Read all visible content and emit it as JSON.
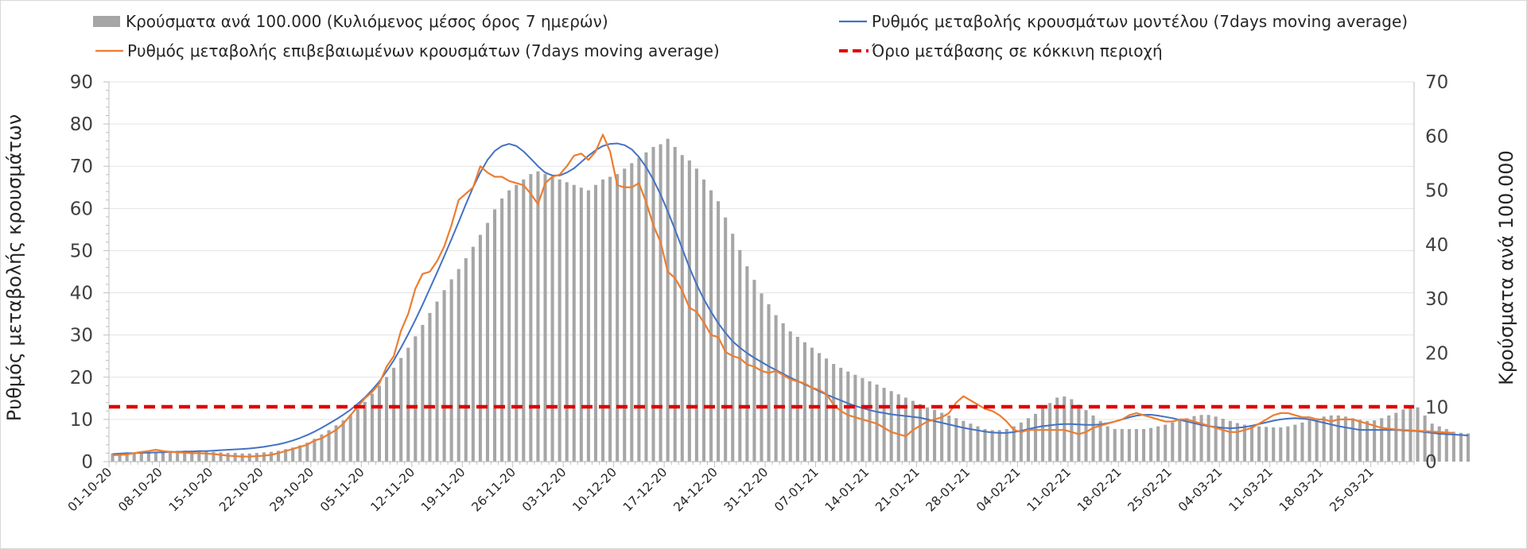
{
  "colors": {
    "bars": "#a6a6a6",
    "model": "#4472c4",
    "confirmed": "#ed7d31",
    "threshold": "#e00000",
    "grid": "#e3e3e3",
    "axis": "#bfbfbf",
    "frame": "#d9d9d9"
  },
  "chart_data": {
    "type": "bar",
    "legend": {
      "placement": "top",
      "items": [
        {
          "key": "bars",
          "label": "Κρούσματα ανά 100.000 (Κυλιόμενος μέσος όρος 7 ημερών)",
          "marker": "bar"
        },
        {
          "key": "model",
          "label": "Ρυθμός μεταβολής κρουσμάτων μοντέλου (7days moving average)",
          "marker": "line"
        },
        {
          "key": "confirmed",
          "label": "Ρυθμός μεταβολής επιβεβαιωμένων κρουσμάτων (7days moving average)",
          "marker": "line"
        },
        {
          "key": "threshold",
          "label": "Όριο μετάβασης σε κόκκινη περιοχή",
          "marker": "dashed"
        }
      ]
    },
    "y_left": {
      "label": "Ρυθμός μεταβολής κρουσμάτων",
      "ylim": [
        0,
        90
      ],
      "ticks": [
        "0",
        "10",
        "20",
        "30",
        "40",
        "50",
        "60",
        "70",
        "80",
        "90"
      ]
    },
    "y_right": {
      "label": "Κρούσματα ανά 100.000",
      "ylim": [
        0,
        70
      ],
      "ticks": [
        "0",
        "10",
        "20",
        "30",
        "40",
        "50",
        "60",
        "70"
      ]
    },
    "x": {
      "start": "01-10-20",
      "count": 181,
      "tick_labels": [
        "01-10-20",
        "08-10-20",
        "15-10-20",
        "22-10-20",
        "29-10-20",
        "05-11-20",
        "12-11-20",
        "19-11-20",
        "26-11-20",
        "03-12-20",
        "10-12-20",
        "17-12-20",
        "24-12-20",
        "31-12-20",
        "07-01-21",
        "14-01-21",
        "21-01-21",
        "28-01-21",
        "04-02-21",
        "11-02-21",
        "18-02-21",
        "25-02-21",
        "04-03-21",
        "11-03-21",
        "18-03-21",
        "25-03-21"
      ]
    },
    "grid": true,
    "series": [
      {
        "key": "bars",
        "name": "Κρούσματα ανά 100.000 (Κυλιόμενος μέσος όρος 7 ημερών)",
        "type": "bar",
        "axis": "right",
        "values": [
          1.5,
          1.5,
          1.6,
          1.6,
          1.7,
          1.8,
          1.8,
          1.9,
          2.0,
          2.0,
          2.0,
          2.0,
          2.0,
          1.9,
          1.8,
          1.7,
          1.6,
          1.6,
          1.5,
          1.5,
          1.6,
          1.7,
          1.8,
          2.0,
          2.3,
          2.6,
          3.0,
          3.5,
          4.2,
          5.0,
          5.8,
          6.7,
          7.6,
          8.6,
          9.7,
          11.0,
          12.5,
          14.0,
          15.6,
          17.3,
          19.1,
          21.0,
          23.1,
          25.2,
          27.4,
          29.5,
          31.6,
          33.6,
          35.5,
          37.5,
          39.6,
          41.8,
          44.0,
          46.5,
          48.5,
          50.0,
          51.0,
          52.0,
          53.0,
          53.5,
          53.0,
          52.5,
          52.0,
          51.5,
          51.0,
          50.5,
          50.0,
          51.0,
          52.0,
          52.5,
          53.0,
          54.0,
          55.0,
          56.0,
          57.0,
          58.0,
          58.5,
          59.5,
          58.0,
          56.5,
          55.5,
          54.0,
          52.0,
          50.0,
          48.0,
          45.0,
          42.0,
          39.0,
          36.0,
          33.5,
          31.0,
          29.0,
          27.0,
          25.5,
          24.0,
          23.0,
          22.0,
          21.0,
          20.0,
          19.0,
          18.0,
          17.3,
          16.6,
          16.0,
          15.4,
          14.8,
          14.2,
          13.6,
          13.0,
          12.4,
          11.8,
          11.2,
          10.6,
          10.0,
          9.5,
          9.0,
          8.5,
          8.0,
          7.5,
          7.0,
          6.5,
          6.0,
          5.8,
          5.8,
          6.0,
          6.5,
          7.2,
          8.0,
          8.8,
          9.8,
          10.8,
          11.8,
          12.0,
          11.5,
          10.5,
          9.5,
          8.5,
          7.5,
          6.5,
          6.0,
          6.0,
          6.0,
          6.0,
          6.0,
          6.2,
          6.5,
          6.8,
          7.2,
          7.6,
          8.0,
          8.4,
          8.6,
          8.6,
          8.3,
          7.9,
          7.5,
          7.1,
          6.8,
          6.6,
          6.5,
          6.4,
          6.3,
          6.3,
          6.5,
          6.8,
          7.2,
          7.6,
          8.0,
          8.3,
          8.5,
          8.5,
          8.3,
          8.0,
          7.7,
          7.5,
          7.6,
          8.0,
          8.5,
          9.0,
          9.6,
          10.0,
          10.0,
          8.5,
          7.0,
          6.5,
          6.0,
          5.5,
          5.3,
          5.2
        ]
      },
      {
        "key": "model",
        "name": "Ρυθμός μεταβολής κρουσμάτων μοντέλου (7days moving average)",
        "type": "line",
        "axis": "left",
        "values": [
          1.8,
          1.9,
          2.0,
          2.0,
          2.1,
          2.1,
          2.2,
          2.2,
          2.3,
          2.3,
          2.4,
          2.4,
          2.5,
          2.5,
          2.6,
          2.7,
          2.8,
          2.9,
          3.0,
          3.1,
          3.3,
          3.5,
          3.8,
          4.1,
          4.5,
          5.0,
          5.6,
          6.3,
          7.1,
          8.0,
          9.0,
          10.0,
          11.1,
          12.3,
          13.7,
          15.2,
          17.0,
          19.0,
          21.4,
          24.0,
          27.0,
          30.2,
          33.6,
          37.2,
          41.0,
          44.8,
          48.7,
          52.7,
          56.8,
          61.0,
          65.0,
          68.5,
          71.5,
          73.6,
          74.8,
          75.3,
          74.8,
          73.5,
          71.8,
          70.0,
          68.5,
          67.8,
          67.8,
          68.5,
          69.5,
          71.0,
          72.5,
          73.8,
          74.8,
          75.3,
          75.4,
          75.0,
          74.0,
          72.2,
          69.8,
          66.8,
          63.3,
          59.3,
          55.0,
          50.5,
          46.0,
          42.0,
          38.5,
          35.5,
          32.8,
          30.5,
          28.5,
          27.0,
          25.7,
          24.6,
          23.6,
          22.6,
          21.7,
          20.8,
          19.9,
          19.1,
          18.3,
          17.5,
          16.7,
          15.9,
          15.2,
          14.5,
          13.8,
          13.2,
          12.7,
          12.2,
          11.8,
          11.5,
          11.2,
          11.0,
          10.8,
          10.6,
          10.4,
          10.0,
          9.6,
          9.2,
          8.8,
          8.4,
          8.0,
          7.7,
          7.4,
          7.1,
          6.9,
          6.8,
          6.8,
          7.0,
          7.3,
          7.7,
          8.1,
          8.4,
          8.6,
          8.8,
          8.9,
          8.9,
          8.8,
          8.7,
          8.7,
          8.8,
          9.1,
          9.5,
          10.0,
          10.5,
          10.9,
          11.1,
          11.1,
          10.9,
          10.6,
          10.3,
          9.9,
          9.5,
          9.1,
          8.7,
          8.4,
          8.2,
          8.0,
          7.9,
          8.0,
          8.2,
          8.5,
          8.9,
          9.3,
          9.7,
          10.0,
          10.2,
          10.3,
          10.2,
          10.0,
          9.6,
          9.2,
          8.8,
          8.4,
          8.1,
          7.8,
          7.5,
          7.5,
          7.5,
          7.5,
          7.5,
          7.5,
          7.4,
          7.3,
          7.2,
          7.0,
          6.8,
          6.6,
          6.5,
          6.4,
          6.3,
          6.2
        ]
      },
      {
        "key": "confirmed",
        "name": "Ρυθμός μεταβολής επιβεβαιωμένων κρουσμάτων (7days moving average)",
        "type": "line",
        "axis": "left",
        "values": [
          1.5,
          1.6,
          1.7,
          2.0,
          2.3,
          2.5,
          2.8,
          2.5,
          2.3,
          2.2,
          2.1,
          2.0,
          2.0,
          1.9,
          1.8,
          1.6,
          1.4,
          1.3,
          1.2,
          1.2,
          1.3,
          1.4,
          1.6,
          2.0,
          2.5,
          3.0,
          3.5,
          4.0,
          5.0,
          5.5,
          6.5,
          7.5,
          9.0,
          11.0,
          13.0,
          15.0,
          16.5,
          18.5,
          22.5,
          25.0,
          31.0,
          35.0,
          41.0,
          44.5,
          45.0,
          47.5,
          51.0,
          56.0,
          62.0,
          63.5,
          65.0,
          70.0,
          68.5,
          67.5,
          67.5,
          66.5,
          66.0,
          65.5,
          63.5,
          61.0,
          66.0,
          67.5,
          68.0,
          70.0,
          72.5,
          73.0,
          71.5,
          73.5,
          77.5,
          73.5,
          65.5,
          65.0,
          65.0,
          66.0,
          61.5,
          56.0,
          52.0,
          45.0,
          43.5,
          40.5,
          36.5,
          35.5,
          33.0,
          30.0,
          29.5,
          26.0,
          25.0,
          24.5,
          23.0,
          22.5,
          21.5,
          21.0,
          21.5,
          20.5,
          19.5,
          19.0,
          18.5,
          17.5,
          17.0,
          16.0,
          13.5,
          12.0,
          11.0,
          10.5,
          10.0,
          9.5,
          9.0,
          8.0,
          7.0,
          6.5,
          6.0,
          7.5,
          8.5,
          9.5,
          10.0,
          10.5,
          11.5,
          14.0,
          15.5,
          14.5,
          13.5,
          12.5,
          12.0,
          11.0,
          9.5,
          7.5,
          7.0,
          7.5,
          7.5,
          7.5,
          7.5,
          7.5,
          7.5,
          7.0,
          6.5,
          7.0,
          8.0,
          8.5,
          9.0,
          9.5,
          10.0,
          11.0,
          11.5,
          11.0,
          10.5,
          10.0,
          9.5,
          9.5,
          10.0,
          10.0,
          9.5,
          9.0,
          8.5,
          8.0,
          7.5,
          7.0,
          7.0,
          7.5,
          8.0,
          9.0,
          10.0,
          11.0,
          11.5,
          11.5,
          11.0,
          10.5,
          10.5,
          10.0,
          10.0,
          9.5,
          10.0,
          10.0,
          10.0,
          9.5,
          9.0,
          8.5,
          8.0,
          7.8,
          7.6,
          7.5,
          7.4,
          7.3,
          7.2,
          7.1,
          7.0,
          6.9,
          6.8
        ]
      },
      {
        "key": "threshold",
        "name": "Όριο μετάβασης σε κόκκινη περιοχή",
        "type": "line",
        "axis": "left",
        "style": "dashed",
        "values": [
          13,
          13
        ]
      }
    ]
  }
}
